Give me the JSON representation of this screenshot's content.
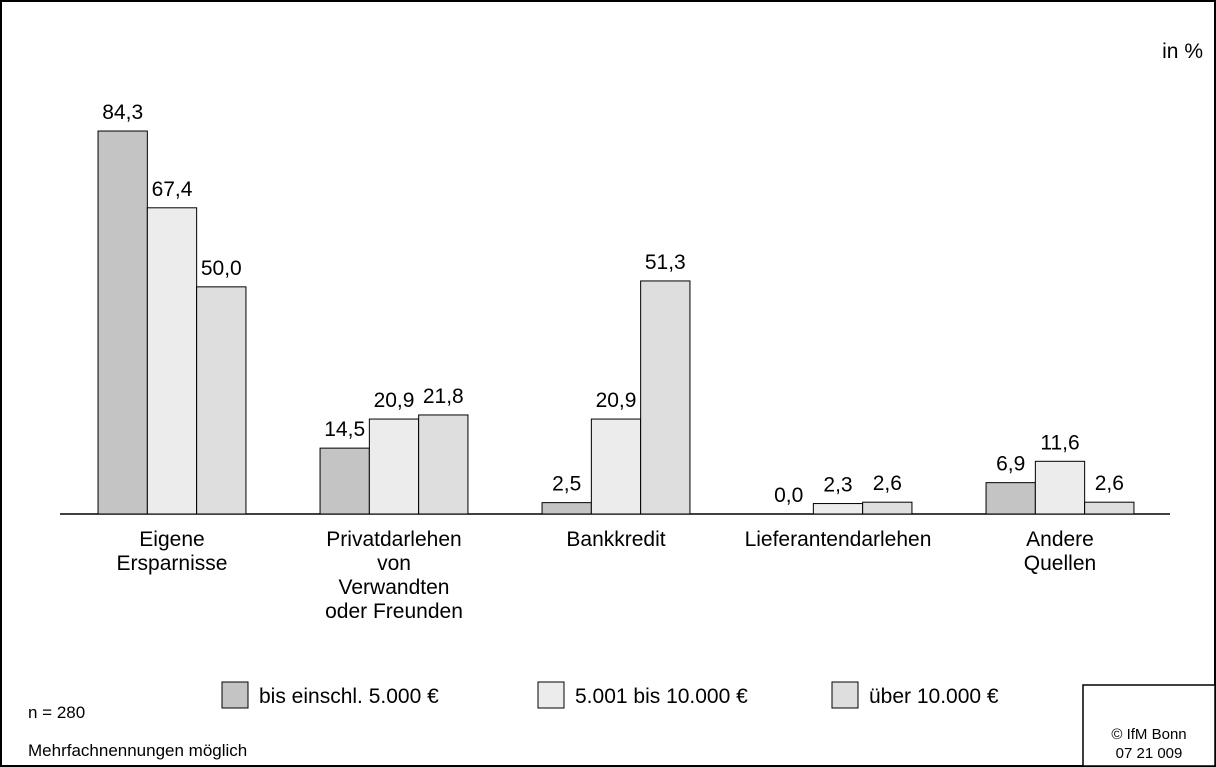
{
  "chart_data": {
    "type": "bar",
    "unit_label": "in %",
    "categories": [
      "Eigene\nErsparnisse",
      "Privatdarlehen\nvon\nVerwandten\noder Freunden",
      "Bankkredit",
      "Lieferantendarlehen",
      "Andere\nQuellen"
    ],
    "series": [
      {
        "name": "bis einschl. 5.000 €",
        "color": "#c4c4c4",
        "values": [
          84.3,
          14.5,
          2.5,
          0.0,
          6.9
        ],
        "value_labels": [
          "84,3",
          "14,5",
          "2,5",
          "0,0",
          "6,9"
        ]
      },
      {
        "name": "5.001 bis 10.000 €",
        "color": "#ececec",
        "values": [
          67.4,
          20.9,
          20.9,
          2.3,
          11.6
        ],
        "value_labels": [
          "67,4",
          "20,9",
          "20,9",
          "2,3",
          "11,6"
        ]
      },
      {
        "name": "über 10.000 €",
        "color": "#dedede",
        "values": [
          50.0,
          21.8,
          51.3,
          2.6,
          2.6
        ],
        "value_labels": [
          "50,0",
          "21,8",
          "51,3",
          "2,6",
          "2,6"
        ]
      }
    ],
    "legend": "bottom",
    "notes": [
      "n = 280",
      "Mehrfachnennungen möglich"
    ],
    "source": [
      "© IfM Bonn",
      "07 21 009"
    ]
  }
}
